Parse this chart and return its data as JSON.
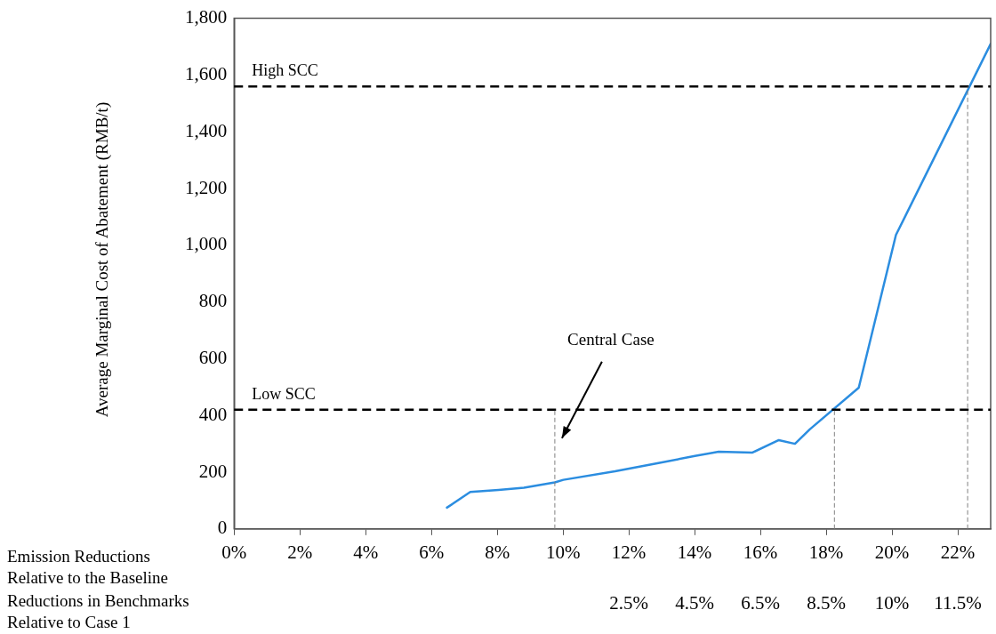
{
  "chart_data": {
    "type": "line",
    "xlabel": "Emission Reductions Relative to the Baseline",
    "ylabel": "Average Marginal Cost of Abatement (RMB/t)",
    "x2label": "Reductions in Benchmarks Relative to Case 1",
    "x": [
      6.47,
      7.18,
      8.04,
      8.81,
      9.75,
      10.01,
      11.58,
      12.9,
      14.01,
      14.73,
      15.76,
      16.56,
      17.05,
      17.5,
      18.99,
      20.12,
      23.0
    ],
    "series": [
      {
        "color": "#2b8de0",
        "values": [
          75,
          130,
          137,
          145,
          164,
          173,
          203,
          232,
          257,
          272,
          269,
          313,
          300,
          351,
          498,
          1036,
          1710
        ]
      }
    ],
    "xlim": [
      0,
      23
    ],
    "xticks": [
      {
        "value": 0,
        "label": "0%"
      },
      {
        "value": 2,
        "label": "2%"
      },
      {
        "value": 4,
        "label": "4%"
      },
      {
        "value": 6,
        "label": "6%"
      },
      {
        "value": 8,
        "label": "8%"
      },
      {
        "value": 10,
        "label": "10%"
      },
      {
        "value": 12,
        "label": "12%"
      },
      {
        "value": 14,
        "label": "14%"
      },
      {
        "value": 16,
        "label": "16%"
      },
      {
        "value": 18,
        "label": "18%"
      },
      {
        "value": 20,
        "label": "20%"
      },
      {
        "value": 22,
        "label": "22%"
      }
    ],
    "ylim": [
      0,
      1800
    ],
    "yticks": [
      0,
      {
        "value": 200,
        "label": "200"
      },
      {
        "value": 400,
        "label": "400"
      },
      {
        "value": 600,
        "label": "600"
      },
      {
        "value": 800,
        "label": "800"
      },
      {
        "value": 1000,
        "label": "1,000"
      },
      {
        "value": 1200,
        "label": "1,200"
      },
      {
        "value": 1400,
        "label": "1,400"
      },
      {
        "value": 1600,
        "label": "1,600"
      },
      {
        "value": 1800,
        "label": "1,800"
      }
    ],
    "ref_lines": [
      {
        "axis": "y",
        "value": 420,
        "label": "Low SCC",
        "color": "#000000",
        "line_style": "dashed"
      },
      {
        "axis": "y",
        "value": 1560,
        "label": "High SCC",
        "color": "#000000",
        "line_style": "dashed"
      },
      {
        "axis": "x",
        "value": 9.75,
        "color": "#808080",
        "line_style": "dashed"
      },
      {
        "axis": "x",
        "value": 18.25,
        "color": "#808080",
        "line_style": "dashed"
      },
      {
        "axis": "x",
        "value": 22.3,
        "color": "#808080",
        "line_style": "dashed"
      }
    ],
    "annotations": [
      "Central Case",
      "2.5%",
      "4.5%",
      "6.5%",
      "8.5%",
      "10%",
      "11.5%"
    ],
    "grid": false,
    "legend": false,
    "marker": "none",
    "line_style": "solid"
  }
}
